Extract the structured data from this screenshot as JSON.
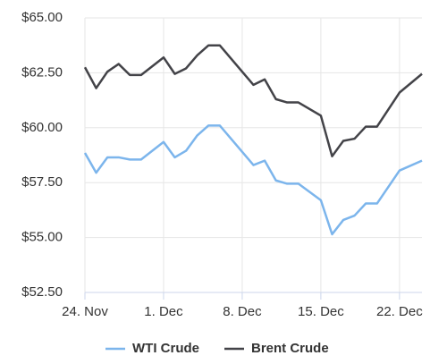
{
  "chart_data": {
    "type": "line",
    "x": [
      "24. Nov",
      "25. Nov",
      "26. Nov",
      "27. Nov",
      "28. Nov",
      "29. Nov",
      "1. Dec",
      "2. Dec",
      "3. Dec",
      "4. Dec",
      "5. Dec",
      "6. Dec",
      "9. Dec",
      "10. Dec",
      "11. Dec",
      "12. Dec",
      "13. Dec",
      "15. Dec",
      "16. Dec",
      "17. Dec",
      "18. Dec",
      "19. Dec",
      "20. Dec",
      "22. Dec",
      "24. Dec"
    ],
    "series": [
      {
        "name": "WTI Crude",
        "color": "#7cb5ec",
        "values": [
          58.85,
          57.95,
          58.65,
          58.65,
          58.55,
          58.55,
          59.35,
          58.65,
          58.95,
          59.65,
          60.1,
          60.1,
          58.3,
          58.5,
          57.6,
          57.45,
          57.45,
          56.7,
          55.15,
          55.8,
          56.0,
          56.55,
          56.55,
          58.05,
          58.5
        ]
      },
      {
        "name": "Brent Crude",
        "color": "#434348",
        "values": [
          62.75,
          61.8,
          62.55,
          62.9,
          62.4,
          62.4,
          63.2,
          62.45,
          62.7,
          63.3,
          63.75,
          63.75,
          61.95,
          62.2,
          61.3,
          61.15,
          61.15,
          60.55,
          58.7,
          59.4,
          59.5,
          60.05,
          60.05,
          61.6,
          62.45
        ]
      }
    ],
    "xlim": [
      "24. Nov",
      "24. Dec"
    ],
    "xticks": [
      "24. Nov",
      "1. Dec",
      "8. Dec",
      "15. Dec",
      "22. Dec"
    ],
    "ylim": [
      52.5,
      65
    ],
    "yticks": [
      {
        "value": 52.5,
        "label": "$52.50"
      },
      {
        "value": 55,
        "label": "$55.00"
      },
      {
        "value": 57.5,
        "label": "$57.50"
      },
      {
        "value": 60,
        "label": "$60.00"
      },
      {
        "value": 62.5,
        "label": "$62.50"
      },
      {
        "value": 65,
        "label": "$65.00"
      }
    ],
    "grid": true,
    "legend": "bottom"
  }
}
